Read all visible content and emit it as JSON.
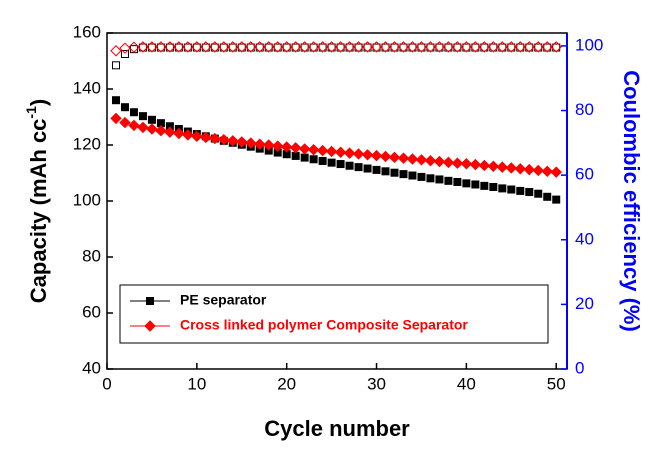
{
  "chart_data": {
    "type": "scatter",
    "xlabel": "Cycle number",
    "ylabel_parts": [
      "Capacity (mAh cc",
      "-1",
      ")"
    ],
    "y2label": "Coulombic efficiency (%)",
    "xlim": [
      0,
      51.2
    ],
    "xticks": [
      0,
      10,
      20,
      30,
      40,
      50
    ],
    "ylim": [
      40,
      160
    ],
    "yticks": [
      40,
      60,
      80,
      100,
      120,
      140,
      160
    ],
    "y2lim": [
      0,
      104
    ],
    "y2ticks": [
      0,
      20,
      40,
      60,
      80,
      100
    ],
    "y2color": "#0000ff",
    "x": [
      1,
      2,
      3,
      4,
      5,
      6,
      7,
      8,
      9,
      10,
      11,
      12,
      13,
      14,
      15,
      16,
      17,
      18,
      19,
      20,
      21,
      22,
      23,
      24,
      25,
      26,
      27,
      28,
      29,
      30,
      31,
      32,
      33,
      34,
      35,
      36,
      37,
      38,
      39,
      40,
      41,
      42,
      43,
      44,
      45,
      46,
      47,
      48,
      49,
      50
    ],
    "series": [
      {
        "name": "PE separator",
        "color": "#000000",
        "marker": "square",
        "filled": true,
        "values": [
          136,
          133.5,
          131.7,
          130.3,
          129,
          127.8,
          126.7,
          125.7,
          124.8,
          123.9,
          123.1,
          122.3,
          121.5,
          120.8,
          120.1,
          119.4,
          118.7,
          118,
          117.3,
          116.7,
          116.1,
          115.5,
          114.9,
          114.3,
          113.7,
          113.2,
          112.6,
          112.1,
          111.6,
          111.1,
          110.6,
          110.1,
          109.6,
          109.1,
          108.6,
          108.1,
          107.7,
          107.2,
          106.8,
          106.3,
          105.9,
          105.4,
          105,
          104.5,
          104.1,
          103.6,
          103.2,
          102.6,
          101.5,
          100.5
        ]
      },
      {
        "name": "Cross linked polymer Composite Separator",
        "color": "#ff0000",
        "marker": "diamond",
        "filled": true,
        "values": [
          129.5,
          128,
          127,
          126.3,
          125.7,
          125.1,
          124.6,
          124.1,
          123.6,
          123.1,
          122.7,
          122.3,
          121.9,
          121.5,
          121.1,
          120.7,
          120.3,
          120,
          119.6,
          119.3,
          119,
          118.6,
          118.3,
          118,
          117.7,
          117.4,
          117.1,
          116.8,
          116.5,
          116.2,
          115.9,
          115.6,
          115.3,
          115,
          114.7,
          114.4,
          114.1,
          113.8,
          113.5,
          113.3,
          113,
          112.7,
          112.4,
          112.1,
          111.8,
          111.5,
          111.2,
          110.9,
          110.6,
          110.3
        ]
      },
      {
        "color": "#000000",
        "marker": "square",
        "filled": false,
        "axis": "y2",
        "values": [
          94,
          97.5,
          99,
          99.5,
          99.5,
          99.5,
          99.5,
          99.5,
          99.5,
          99.5,
          99.5,
          99.5,
          99.5,
          99.5,
          99.5,
          99.5,
          99.5,
          99.5,
          99.5,
          99.5,
          99.5,
          99.5,
          99.5,
          99.5,
          99.5,
          99.5,
          99.5,
          99.5,
          99.5,
          99.5,
          99.5,
          99.5,
          99.5,
          99.5,
          99.5,
          99.5,
          99.5,
          99.5,
          99.5,
          99.5,
          99.5,
          99.5,
          99.5,
          99.5,
          99.5,
          99.5,
          99.5,
          99.5,
          99.5,
          99.5
        ]
      },
      {
        "color": "#ff0000",
        "marker": "diamond",
        "filled": false,
        "axis": "y2",
        "values": [
          98.5,
          99.3,
          99.6,
          99.7,
          99.7,
          99.7,
          99.7,
          99.7,
          99.7,
          99.7,
          99.7,
          99.7,
          99.7,
          99.7,
          99.7,
          99.7,
          99.7,
          99.7,
          99.7,
          99.7,
          99.7,
          99.7,
          99.7,
          99.7,
          99.7,
          99.7,
          99.7,
          99.7,
          99.7,
          99.7,
          99.7,
          99.7,
          99.7,
          99.7,
          99.7,
          99.7,
          99.7,
          99.7,
          99.7,
          99.7,
          99.7,
          99.7,
          99.7,
          99.7,
          99.7,
          99.7,
          99.7,
          99.7,
          99.7,
          99.7
        ]
      }
    ]
  }
}
